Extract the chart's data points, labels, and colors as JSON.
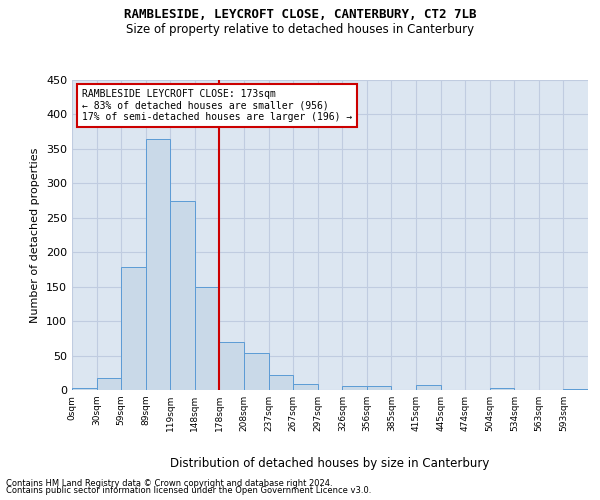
{
  "title1": "RAMBLESIDE, LEYCROFT CLOSE, CANTERBURY, CT2 7LB",
  "title2": "Size of property relative to detached houses in Canterbury",
  "xlabel": "Distribution of detached houses by size in Canterbury",
  "ylabel": "Number of detached properties",
  "footnote1": "Contains HM Land Registry data © Crown copyright and database right 2024.",
  "footnote2": "Contains public sector information licensed under the Open Government Licence v3.0.",
  "bin_labels": [
    "0sqm",
    "30sqm",
    "59sqm",
    "89sqm",
    "119sqm",
    "148sqm",
    "178sqm",
    "208sqm",
    "237sqm",
    "267sqm",
    "297sqm",
    "326sqm",
    "356sqm",
    "385sqm",
    "415sqm",
    "445sqm",
    "474sqm",
    "504sqm",
    "534sqm",
    "563sqm",
    "593sqm"
  ],
  "bar_values": [
    3,
    17,
    178,
    365,
    274,
    150,
    70,
    53,
    22,
    9,
    0,
    6,
    6,
    0,
    7,
    0,
    0,
    3,
    0,
    0,
    2
  ],
  "bar_color": "#c9d9e8",
  "bar_edge_color": "#5b9bd5",
  "vline_x": 6,
  "vline_color": "#cc0000",
  "annotation_text": "RAMBLESIDE LEYCROFT CLOSE: 173sqm\n← 83% of detached houses are smaller (956)\n17% of semi-detached houses are larger (196) →",
  "annotation_box_color": "#cc0000",
  "ylim": [
    0,
    450
  ],
  "yticks": [
    0,
    50,
    100,
    150,
    200,
    250,
    300,
    350,
    400,
    450
  ],
  "plot_bg_color": "#dce6f1",
  "background_color": "#ffffff",
  "grid_color": "#c0cce0"
}
